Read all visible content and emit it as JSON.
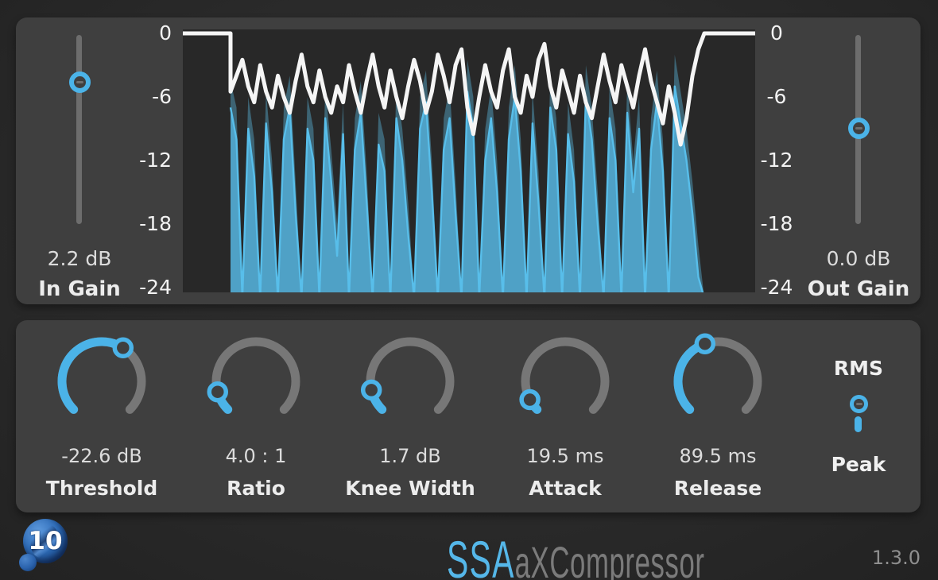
{
  "colors": {
    "accent_blue": "#4bb3e8",
    "arc_gray": "#777777",
    "panel": "#3f3f3f",
    "graph_bg": "#282828",
    "gain_trace_white": "#f5f5f5",
    "input_fill_teal": "#3d6474",
    "output_fill_blue": "rgba(86,185,230,0.72)",
    "output_line_blue": "#58beea",
    "brand_blue": "#55b7e9"
  },
  "meter": {
    "scale_left": [
      "0",
      "-6",
      "-12",
      "-18",
      "-24"
    ],
    "scale_right": [
      "0",
      "-6",
      "-12",
      "-18",
      "-24"
    ],
    "in_gain": {
      "value": "2.2 dB",
      "label": "In Gain",
      "frac": 0.252
    },
    "out_gain": {
      "value": "0.0 dB",
      "label": "Out Gain",
      "frac": 0.492
    }
  },
  "chart_data": {
    "type": "area",
    "title": "Level meter: input level (teal area), output level (blue area), gain trace (white line)",
    "ylabel": "dB",
    "ylim": [
      -24,
      0
    ],
    "grid": false,
    "lead_silence_frac": 0.083,
    "series": [
      {
        "name": "input_db",
        "values": [
          -4.5,
          -7,
          -25,
          -6,
          -10,
          -25,
          -5.5,
          -12,
          -25,
          -7,
          -4,
          -14,
          -25,
          -6,
          -9,
          -25,
          -5,
          -11,
          -18,
          -6.5,
          -25,
          -8,
          -4.5,
          -13,
          -25,
          -7.5,
          -10,
          -25,
          -5,
          -9,
          -16,
          -25,
          -6,
          -3.5,
          -12,
          -25,
          -8,
          -5,
          -14,
          -25,
          -2.5,
          -6,
          -25,
          -9,
          -5,
          -12,
          -25,
          -7,
          -3,
          -10,
          -25,
          -5.5,
          -13,
          -25,
          -4,
          -8,
          -25,
          -6.5,
          -11,
          -25,
          -3,
          -7,
          -15,
          -25,
          -5,
          -9,
          -25,
          -4.5,
          -12,
          -6,
          -25,
          -8,
          -3.5,
          -10,
          -25,
          -2,
          -5.5,
          -9,
          -14,
          -20,
          -25
        ]
      },
      {
        "name": "output_db",
        "values": [
          -7,
          -10,
          -25,
          -9,
          -13.5,
          -25,
          -8.5,
          -15,
          -25,
          -10,
          -7,
          -17,
          -25,
          -9,
          -12,
          -25,
          -8,
          -14,
          -21,
          -9.5,
          -25,
          -11,
          -7.5,
          -16,
          -25,
          -10.5,
          -13,
          -25,
          -8,
          -12,
          -19,
          -25,
          -9,
          -6.5,
          -15,
          -25,
          -11,
          -8,
          -17,
          -25,
          -5.5,
          -9,
          -25,
          -12,
          -8,
          -15,
          -25,
          -10,
          -6,
          -13,
          -25,
          -8.5,
          -16,
          -25,
          -7,
          -11,
          -25,
          -9.5,
          -14,
          -25,
          -6,
          -10,
          -18,
          -25,
          -8,
          -12,
          -25,
          -7.5,
          -15,
          -9,
          -25,
          -11,
          -6.5,
          -13,
          -25,
          -5,
          -8.5,
          -12,
          -17,
          -23,
          -25
        ]
      },
      {
        "name": "gain_db",
        "values": [
          -5.5,
          -4,
          -2.5,
          -5,
          -6.5,
          -3,
          -5.5,
          -7,
          -4,
          -6,
          -7.5,
          -4.5,
          -2,
          -5,
          -6.5,
          -3.5,
          -6,
          -7.5,
          -5,
          -6.5,
          -3,
          -5.5,
          -7.5,
          -4.5,
          -2,
          -5,
          -7,
          -3.5,
          -6,
          -8,
          -5,
          -2.5,
          -4.5,
          -7.5,
          -5.5,
          -2,
          -4,
          -6.5,
          -3,
          -1.5,
          -7,
          -9.5,
          -6,
          -3,
          -5.5,
          -7,
          -3.5,
          -1.5,
          -6,
          -7.5,
          -4,
          -6,
          -2.5,
          -1,
          -5,
          -7,
          -3.5,
          -5.5,
          -7.5,
          -4,
          -6.5,
          -8,
          -5,
          -2,
          -4.5,
          -6.5,
          -3,
          -5,
          -7,
          -4,
          -1.5,
          -4.5,
          -6.5,
          -8.5,
          -5,
          -7.5,
          -10.5,
          -8,
          -4,
          -1.5,
          0
        ]
      }
    ]
  },
  "controls": [
    {
      "id": "threshold",
      "value": "-22.6 dB",
      "label": "Threshold",
      "frac": 0.62
    },
    {
      "id": "ratio",
      "value": "4.0 : 1",
      "label": "Ratio",
      "frac": 0.11
    },
    {
      "id": "knee",
      "value": "1.7 dB",
      "label": "Knee Width",
      "frac": 0.12
    },
    {
      "id": "attack",
      "value": "19.5 ms",
      "label": "Attack",
      "frac": 0.065
    },
    {
      "id": "release",
      "value": "89.5 ms",
      "label": "Release",
      "frac": 0.43
    }
  ],
  "detector_toggle": {
    "top_label": "RMS",
    "bottom_label": "Peak",
    "selected": "RMS"
  },
  "footer": {
    "logo_text": "10",
    "brand": "SSA",
    "product": "aXCompressor",
    "version": "1.3.0"
  }
}
